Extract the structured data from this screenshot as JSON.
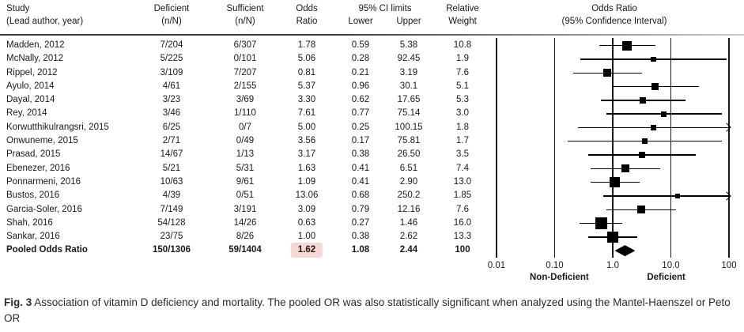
{
  "table": {
    "headers": {
      "study1": "Study",
      "study2": "(Lead author, year)",
      "deficient1": "Deficient",
      "deficient2": "(n/N)",
      "sufficient1": "Sufficient",
      "sufficient2": "(n/N)",
      "odds1": "Odds",
      "odds2": "Ratio",
      "ci": "95% CI limits",
      "lower": "Lower",
      "upper": "Upper",
      "weight1": "Relative",
      "weight2": "Weight",
      "plot1": "Odds Ratio",
      "plot2": "(95% Confidence Interval)"
    }
  },
  "chart_data": {
    "type": "forest",
    "x_scale": "log10",
    "xlim": [
      0.01,
      100
    ],
    "x_ticks": [
      {
        "value": 0.01,
        "label": "0.01"
      },
      {
        "value": 0.1,
        "label": "0.10"
      },
      {
        "value": 1,
        "label": "1.0"
      },
      {
        "value": 10,
        "label": "10.0"
      },
      {
        "value": 100,
        "label": "100"
      }
    ],
    "direction_labels": {
      "left": "Non-Deficient",
      "right": "Deficient"
    },
    "marker_color": "#000000",
    "pooled_highlight_color": "#f8d7d3",
    "studies": [
      {
        "study": "Madden, 2012",
        "deficient": "7/204",
        "sufficient": "6/307",
        "or": 1.78,
        "or_text": "1.78",
        "lower": 0.59,
        "lower_text": "0.59",
        "upper": 5.38,
        "upper_text": "5.38",
        "weight": 10.8,
        "weight_text": "10.8"
      },
      {
        "study": "McNally, 2012",
        "deficient": "5/225",
        "sufficient": "0/101",
        "or": 5.06,
        "or_text": "5.06",
        "lower": 0.28,
        "lower_text": "0.28",
        "upper": 92.45,
        "upper_text": "92.45",
        "weight": 1.9,
        "weight_text": "1.9"
      },
      {
        "study": "Rippel, 2012",
        "deficient": "3/109",
        "sufficient": "7/207",
        "or": 0.81,
        "or_text": "0.81",
        "lower": 0.21,
        "lower_text": "0.21",
        "upper": 3.19,
        "upper_text": "3.19",
        "weight": 7.6,
        "weight_text": "7.6"
      },
      {
        "study": "Ayulo, 2014",
        "deficient": "4/61",
        "sufficient": "2/155",
        "or": 5.37,
        "or_text": "5.37",
        "lower": 0.96,
        "lower_text": "0.96",
        "upper": 30.1,
        "upper_text": "30.1",
        "weight": 5.1,
        "weight_text": "5.1"
      },
      {
        "study": "Dayal, 2014",
        "deficient": "3/23",
        "sufficient": "3/69",
        "or": 3.3,
        "or_text": "3.30",
        "lower": 0.62,
        "lower_text": "0.62",
        "upper": 17.65,
        "upper_text": "17.65",
        "weight": 5.3,
        "weight_text": "5.3"
      },
      {
        "study": "Rey, 2014",
        "deficient": "3/46",
        "sufficient": "1/110",
        "or": 7.61,
        "or_text": "7.61",
        "lower": 0.77,
        "lower_text": "0.77",
        "upper": 75.14,
        "upper_text": "75.14",
        "weight": 3.0,
        "weight_text": "3.0"
      },
      {
        "study": "Korwutthikulrangsri, 2015",
        "deficient": "6/25",
        "sufficient": "0/7",
        "or": 5.0,
        "or_text": "5.00",
        "lower": 0.25,
        "lower_text": "0.25",
        "upper": 100.15,
        "upper_text": "100.15",
        "weight": 1.8,
        "weight_text": "1.8"
      },
      {
        "study": "Onwuneme, 2015",
        "deficient": "2/71",
        "sufficient": "0/49",
        "or": 3.56,
        "or_text": "3.56",
        "lower": 0.17,
        "lower_text": "0.17",
        "upper": 75.81,
        "upper_text": "75.81",
        "weight": 1.7,
        "weight_text": "1.7"
      },
      {
        "study": "Prasad, 2015",
        "deficient": "14/67",
        "sufficient": "1/13",
        "or": 3.17,
        "or_text": "3.17",
        "lower": 0.38,
        "lower_text": "0.38",
        "upper": 26.5,
        "upper_text": "26.50",
        "weight": 3.5,
        "weight_text": "3.5"
      },
      {
        "study": "Ebenezer, 2016",
        "deficient": "5/21",
        "sufficient": "5/31",
        "or": 1.63,
        "or_text": "1.63",
        "lower": 0.41,
        "lower_text": "0.41",
        "upper": 6.51,
        "upper_text": "6.51",
        "weight": 7.4,
        "weight_text": "7.4"
      },
      {
        "study": "Ponnarmeni, 2016",
        "deficient": "10/63",
        "sufficient": "9/61",
        "or": 1.09,
        "or_text": "1.09",
        "lower": 0.41,
        "lower_text": "0.41",
        "upper": 2.9,
        "upper_text": "2.90",
        "weight": 13.0,
        "weight_text": "13.0"
      },
      {
        "study": "Bustos, 2016",
        "deficient": "4/39",
        "sufficient": "0/51",
        "or": 13.06,
        "or_text": "13.06",
        "lower": 0.68,
        "lower_text": "0.68",
        "upper": 250.2,
        "upper_text": "250.2",
        "weight": 1.85,
        "weight_text": "1.85"
      },
      {
        "study": "Garcia-Soler, 2016",
        "deficient": "7/149",
        "sufficient": "3/191",
        "or": 3.09,
        "or_text": "3.09",
        "lower": 0.79,
        "lower_text": "0.79",
        "upper": 12.16,
        "upper_text": "12.16",
        "weight": 7.6,
        "weight_text": "7.6"
      },
      {
        "study": "Shah, 2016",
        "deficient": "54/128",
        "sufficient": "14/26",
        "or": 0.63,
        "or_text": "0.63",
        "lower": 0.27,
        "lower_text": "0.27",
        "upper": 1.46,
        "upper_text": "1.46",
        "weight": 16.0,
        "weight_text": "16.0"
      },
      {
        "study": "Sankar, 2016",
        "deficient": "23/75",
        "sufficient": "8/26",
        "or": 1.0,
        "or_text": "1.00",
        "lower": 0.38,
        "lower_text": "0.38",
        "upper": 2.62,
        "upper_text": "2.62",
        "weight": 13.3,
        "weight_text": "13.3"
      },
      {
        "study": "Pooled Odds Ratio",
        "pooled": true,
        "deficient": "150/1306",
        "sufficient": "59/1404",
        "or": 1.62,
        "or_text": "1.62",
        "lower": 1.08,
        "lower_text": "1.08",
        "upper": 2.44,
        "upper_text": "2.44",
        "weight": 100,
        "weight_text": "100"
      }
    ]
  },
  "caption": {
    "label": "Fig. 3",
    "text": "Association of vitamin D deficiency and mortality. The pooled OR was also statistically significant when analyzed using the Mantel-Haenszel or Peto OR"
  }
}
